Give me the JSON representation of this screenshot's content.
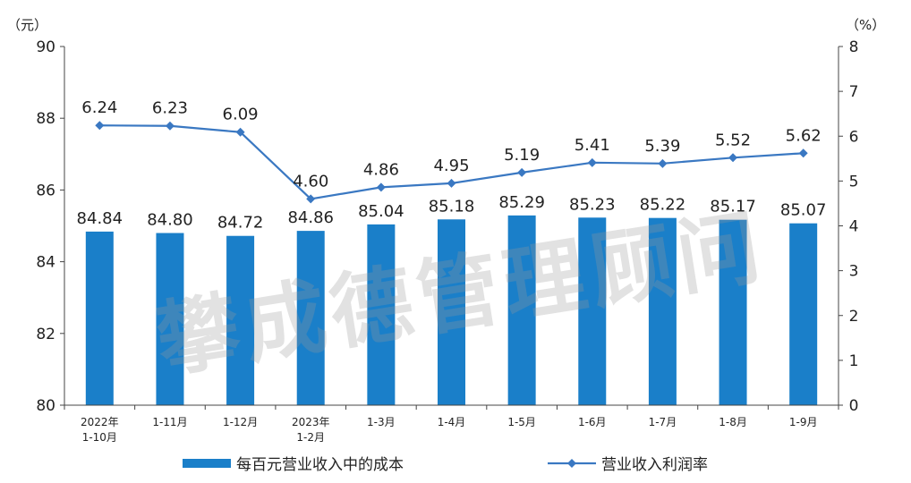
{
  "chart_data": {
    "type": "bar+line",
    "categories": [
      [
        "2022年",
        "1-10月"
      ],
      [
        "1-11月"
      ],
      [
        "1-12月"
      ],
      [
        "2023年",
        "1-2月"
      ],
      [
        "1-3月"
      ],
      [
        "1-4月"
      ],
      [
        "1-5月"
      ],
      [
        "1-6月"
      ],
      [
        "1-7月"
      ],
      [
        "1-8月"
      ],
      [
        "1-9月"
      ]
    ],
    "series": [
      {
        "name": "每百元营业收入中的成本",
        "type": "bar",
        "axis": "left",
        "color": "#1a7fc9",
        "values": [
          84.84,
          84.8,
          84.72,
          84.86,
          85.04,
          85.18,
          85.29,
          85.23,
          85.22,
          85.17,
          85.07
        ],
        "labels": [
          "84.84",
          "84.80",
          "84.72",
          "84.86",
          "85.04",
          "85.18",
          "85.29",
          "85.23",
          "85.22",
          "85.17",
          "85.07"
        ]
      },
      {
        "name": "营业收入利润率",
        "type": "line",
        "axis": "right",
        "color": "#3a78c2",
        "values": [
          6.24,
          6.23,
          6.09,
          4.6,
          4.86,
          4.95,
          5.19,
          5.41,
          5.39,
          5.52,
          5.62
        ],
        "labels": [
          "6.24",
          "6.23",
          "6.09",
          "4.60",
          "4.86",
          "4.95",
          "5.19",
          "5.41",
          "5.39",
          "5.52",
          "5.62"
        ]
      }
    ],
    "y_left": {
      "unit": "（元）",
      "min": 80,
      "max": 90,
      "ticks": [
        "80",
        "82",
        "84",
        "86",
        "88",
        "90"
      ]
    },
    "y_right": {
      "unit": "（%）",
      "min": 0,
      "max": 8,
      "ticks": [
        "0",
        "1",
        "2",
        "3",
        "4",
        "5",
        "6",
        "7",
        "8"
      ]
    },
    "legend_position": "bottom",
    "grid": false
  },
  "watermark": "攀成德管理顾问"
}
